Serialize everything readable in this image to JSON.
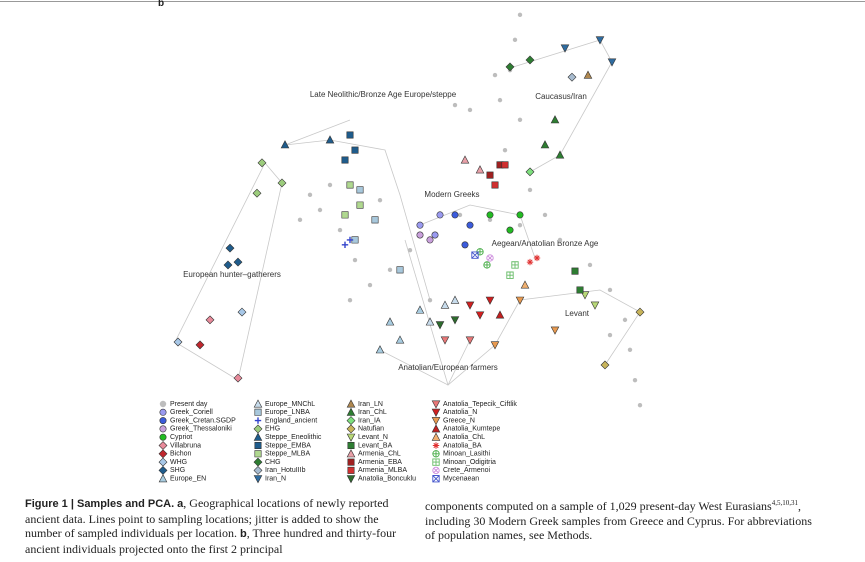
{
  "panel_label": "b",
  "chart_data": {
    "type": "scatter",
    "xlim": [
      0,
      100
    ],
    "ylim": [
      0,
      100
    ],
    "annotations": [
      "Late Neolithic/Bronze Age Europe/steppe",
      "Caucasus/Iran",
      "Modern Greeks",
      "Aegean/Anatolian Bronze Age",
      "European hunter–gatherers",
      "Levant",
      "Anatolian/European farmers"
    ],
    "series": [
      {
        "name": "Present day",
        "color": "#bdbdbd",
        "marker": "dot",
        "x": [
          72,
          71,
          70,
          68,
          62,
          59,
          72,
          69,
          74,
          77,
          72,
          66,
          60,
          32,
          30,
          34,
          36,
          39,
          42,
          38,
          46,
          50,
          28,
          80,
          86,
          90,
          93,
          94,
          95,
          96,
          90,
          44,
          54,
          67
        ],
        "y": [
          97.6,
          91.5,
          84.1,
          76.8,
          74.4,
          75.6,
          72,
          64.6,
          54.9,
          48.8,
          46.3,
          47.6,
          48.8,
          50,
          53.7,
          56.1,
          45.1,
          37.8,
          31.7,
          28,
          35.4,
          40.2,
          47.6,
          42.7,
          36.6,
          30.5,
          23.2,
          15.9,
          8.5,
          2.4,
          19.5,
          52.4,
          28,
          82.9
        ]
      },
      {
        "name": "Greek_Coriell",
        "color": "#9a9af0",
        "marker": "circle",
        "x": [
          52,
          56,
          55
        ],
        "y": [
          46.3,
          48.8,
          43.9
        ]
      },
      {
        "name": "Greek_Cretan.SGDP",
        "color": "#3b5bdb",
        "marker": "circle",
        "x": [
          59,
          61,
          62
        ],
        "y": [
          48.8,
          41.5,
          46.3
        ]
      },
      {
        "name": "Greek_Thessaloniki",
        "color": "#c9a0dc",
        "marker": "circle",
        "x": [
          52,
          54
        ],
        "y": [
          43.9,
          42.7
        ]
      },
      {
        "name": "Cypriot",
        "color": "#22bb22",
        "marker": "circle",
        "x": [
          66,
          70,
          72
        ],
        "y": [
          48.8,
          45.1,
          48.8
        ]
      },
      {
        "name": "Villabruna",
        "color": "#e88a9a",
        "marker": "diamond",
        "x": [
          10,
          15.6
        ],
        "y": [
          23.2,
          9
        ]
      },
      {
        "name": "Bichon",
        "color": "#c0272d",
        "marker": "diamond",
        "x": [
          8
        ],
        "y": [
          17.1
        ]
      },
      {
        "name": "WHG",
        "color": "#a8c8e8",
        "marker": "diamond",
        "x": [
          16.4,
          3.6
        ],
        "y": [
          25.1,
          17.8
        ]
      },
      {
        "name": "SHG",
        "color": "#1f5c8c",
        "marker": "diamond",
        "x": [
          14,
          15.6,
          13.6
        ],
        "y": [
          40.7,
          37.3,
          36.6
        ]
      },
      {
        "name": "Europe_EN",
        "color": "#a8cce0",
        "marker": "tri-up",
        "x": [
          46,
          48,
          52,
          44
        ],
        "y": [
          22.7,
          18.3,
          25.6,
          15.9
        ]
      },
      {
        "name": "Europe_MNChL",
        "color": "#c8dcec",
        "marker": "tri-up",
        "x": [
          57,
          59,
          54
        ],
        "y": [
          26.8,
          28,
          22.7
        ]
      },
      {
        "name": "Europe_LNBA",
        "color": "#a8c8dc",
        "marker": "square",
        "x": [
          40,
          43,
          39,
          48
        ],
        "y": [
          54.9,
          47.6,
          42.7,
          35.4
        ]
      },
      {
        "name": "England_ancient",
        "color": "#3344cc",
        "marker": "plus",
        "x": [
          38,
          37
        ],
        "y": [
          42.7,
          41.5
        ]
      },
      {
        "name": "EHG",
        "color": "#9ccc7c",
        "marker": "diamond",
        "x": [
          20.4,
          24.4,
          19.4
        ],
        "y": [
          61.5,
          56.6,
          54.1
        ]
      },
      {
        "name": "Steppe_Eneolithic",
        "color": "#1f5c8c",
        "marker": "tri-up",
        "x": [
          25,
          34
        ],
        "y": [
          65.9,
          67.1
        ]
      },
      {
        "name": "Steppe_EMBA",
        "color": "#1f5c8c",
        "marker": "square",
        "x": [
          38,
          39,
          37
        ],
        "y": [
          68.3,
          64.6,
          62.2
        ]
      },
      {
        "name": "Steppe_MLBA",
        "color": "#b0d890",
        "marker": "square",
        "x": [
          38,
          40,
          37
        ],
        "y": [
          56.1,
          51.2,
          48.8
        ]
      },
      {
        "name": "CHG",
        "color": "#2e7d32",
        "marker": "diamond",
        "x": [
          70,
          74
        ],
        "y": [
          84.9,
          86.6
        ]
      },
      {
        "name": "Iran_HotuIIIb",
        "color": "#a8bcd0",
        "marker": "diamond",
        "x": [
          82.4
        ],
        "y": [
          82.4
        ]
      },
      {
        "name": "Iran_N",
        "color": "#2f6ca0",
        "marker": "tri-down",
        "x": [
          81,
          88,
          90.4
        ],
        "y": [
          89.5,
          91.5,
          86.1
        ]
      },
      {
        "name": "Iran_LN",
        "color": "#b08850",
        "marker": "tri-up",
        "x": [
          85.6
        ],
        "y": [
          82.9
        ]
      },
      {
        "name": "Iran_ChL",
        "color": "#2e7d32",
        "marker": "tri-up",
        "x": [
          79,
          77,
          80
        ],
        "y": [
          72,
          65.9,
          63.4
        ]
      },
      {
        "name": "Iran_IA",
        "color": "#7ee07e",
        "marker": "diamond",
        "x": [
          74
        ],
        "y": [
          59.3
        ]
      },
      {
        "name": "Natufian",
        "color": "#c8b45a",
        "marker": "diamond",
        "x": [
          96,
          89
        ],
        "y": [
          25.1,
          12.2
        ]
      },
      {
        "name": "Levant_N",
        "color": "#b8d878",
        "marker": "tri-down",
        "x": [
          85,
          87
        ],
        "y": [
          29.3,
          26.8
        ]
      },
      {
        "name": "Levant_BA",
        "color": "#2e7d32",
        "marker": "square",
        "x": [
          83,
          84
        ],
        "y": [
          35.1,
          30.5
        ]
      },
      {
        "name": "Armenia_ChL",
        "color": "#e8a0a8",
        "marker": "tri-up",
        "x": [
          61,
          64
        ],
        "y": [
          62.2,
          59.8
        ]
      },
      {
        "name": "Armenia_EBA",
        "color": "#a02020",
        "marker": "square",
        "x": [
          66,
          68
        ],
        "y": [
          58.5,
          61
        ]
      },
      {
        "name": "Armenia_MLBA",
        "color": "#d03030",
        "marker": "square",
        "x": [
          69,
          67
        ],
        "y": [
          61,
          56.1
        ]
      },
      {
        "name": "Anatolia_Boncuklu",
        "color": "#2e6b2e",
        "marker": "tri-down",
        "x": [
          59,
          56
        ],
        "y": [
          23.2,
          22
        ]
      },
      {
        "name": "Anatolia_Tepecik_Ciftlik",
        "color": "#e87878",
        "marker": "tri-down",
        "x": [
          57,
          62
        ],
        "y": [
          18.3,
          18.3
        ]
      },
      {
        "name": "Anatolia_N",
        "color": "#d02020",
        "marker": "tri-down",
        "x": [
          62,
          64,
          66
        ],
        "y": [
          26.8,
          24.4,
          28
        ]
      },
      {
        "name": "Greece_N",
        "color": "#e89a50",
        "marker": "tri-down",
        "x": [
          72,
          79,
          67
        ],
        "y": [
          28,
          20.7,
          17.1
        ]
      },
      {
        "name": "Anatolia_Kumtepe",
        "color": "#c02020",
        "marker": "tri-up",
        "x": [
          68
        ],
        "y": [
          24.4
        ]
      },
      {
        "name": "Anatolia_ChL",
        "color": "#f0b070",
        "marker": "tri-up",
        "x": [
          73
        ],
        "y": [
          31.7
        ]
      },
      {
        "name": "Anatolia_BA",
        "color": "#e03030",
        "marker": "star",
        "x": [
          74,
          75.4
        ],
        "y": [
          37.3,
          38.3
        ]
      },
      {
        "name": "Minoan_Lasithi",
        "color": "#44aa44",
        "marker": "circle-plus",
        "x": [
          65.4,
          64
        ],
        "y": [
          36.6,
          39.8
        ]
      },
      {
        "name": "Minoan_Odigitria",
        "color": "#66bb66",
        "marker": "square-plus",
        "x": [
          70,
          71
        ],
        "y": [
          34.1,
          36.6
        ]
      },
      {
        "name": "Crete_Armenoi",
        "color": "#cc88dd",
        "marker": "circle-x",
        "x": [
          66
        ],
        "y": [
          38.3
        ]
      },
      {
        "name": "Mycenaean",
        "color": "#4455cc",
        "marker": "square-x",
        "x": [
          63
        ],
        "y": [
          39
        ]
      }
    ]
  },
  "caption": {
    "label": "Figure 1 | Samples and PCA.",
    "left": [
      " ",
      "a",
      ", Geographical locations of newly reported ancient data. Lines point to sampling locations; jitter is added to show the number of sampled individuals per location. ",
      "b",
      ", Three hundred and thirty-four ancient individuals projected onto the first 2 principal"
    ],
    "right_text": "components computed on a sample of 1,029 present-day West Eurasians",
    "right_refs": "4,5,10,31",
    "right_rest": ", including 30 Modern Greek samples from Greece and Cyprus. For abbreviations of population names, see Methods."
  }
}
